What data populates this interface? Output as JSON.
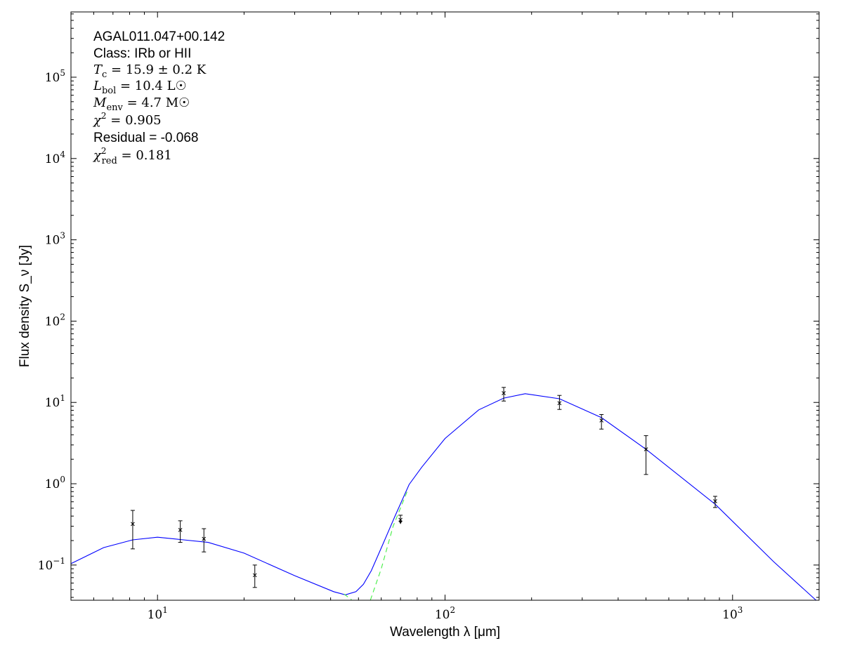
{
  "chart_data": {
    "type": "scatter",
    "xlabel": "Wavelength λ [μm]",
    "ylabel": "Flux density S_ν [Jy]",
    "xscale": "log",
    "yscale": "log",
    "xlim": [
      5,
      2000
    ],
    "ylim": [
      0.0369,
      635000
    ],
    "grid": false,
    "x_ticks": [
      {
        "value": 10,
        "base": "10",
        "exp": "1"
      },
      {
        "value": 100,
        "base": "10",
        "exp": "2"
      },
      {
        "value": 1000,
        "base": "10",
        "exp": "3"
      }
    ],
    "y_ticks": [
      {
        "value": 0.1,
        "base": "10",
        "exp": "−1"
      },
      {
        "value": 1,
        "base": "10",
        "exp": "0"
      },
      {
        "value": 10,
        "base": "10",
        "exp": "1"
      },
      {
        "value": 100,
        "base": "10",
        "exp": "2"
      },
      {
        "value": 1000,
        "base": "10",
        "exp": "3"
      },
      {
        "value": 10000,
        "base": "10",
        "exp": "4"
      },
      {
        "value": 100000,
        "base": "10",
        "exp": "5"
      }
    ],
    "annotations": [
      {
        "style": "sans",
        "text": "AGAL011.047+00.142"
      },
      {
        "style": "sans",
        "text": "Class: IRb or HII"
      },
      {
        "style": "math",
        "sym": "T",
        "sub": "c",
        "sup": "",
        "rest": " = 15.9 ± 0.2 K"
      },
      {
        "style": "math",
        "sym": "L",
        "sub": "bol",
        "sup": "",
        "rest": " = 10.4 L☉"
      },
      {
        "style": "math",
        "sym": "M",
        "sub": "env",
        "sup": "",
        "rest": " = 4.7 M☉"
      },
      {
        "style": "math",
        "sym": "χ",
        "sub": "",
        "sup": "2",
        "rest": " = 0.905"
      },
      {
        "style": "sans",
        "text": "Residual = -0.068"
      },
      {
        "style": "math",
        "sym": "χ",
        "sub": "red",
        "sup": "2",
        "rest": " = 0.181"
      }
    ],
    "points": [
      {
        "x": 8.2,
        "y": 0.32,
        "ylo": 0.158,
        "yhi": 0.47
      },
      {
        "x": 12.0,
        "y": 0.27,
        "ylo": 0.19,
        "yhi": 0.35
      },
      {
        "x": 14.5,
        "y": 0.21,
        "ylo": 0.145,
        "yhi": 0.28
      },
      {
        "x": 21.8,
        "y": 0.075,
        "ylo": 0.053,
        "yhi": 0.1
      },
      {
        "x": 70,
        "y": 0.36,
        "ylo": 0.33,
        "yhi": 0.41,
        "upper_limit": true
      },
      {
        "x": 160,
        "y": 13.0,
        "ylo": 10.4,
        "yhi": 15.3
      },
      {
        "x": 250,
        "y": 9.8,
        "ylo": 8.2,
        "yhi": 12.2
      },
      {
        "x": 350,
        "y": 6.0,
        "ylo": 4.7,
        "yhi": 7.1
      },
      {
        "x": 500,
        "y": 2.65,
        "ylo": 1.3,
        "yhi": 3.9
      },
      {
        "x": 870,
        "y": 0.61,
        "ylo": 0.51,
        "yhi": 0.7
      }
    ],
    "series": [
      {
        "style": "solid",
        "color": "#0000ff",
        "x": [
          5,
          6.5,
          8.2,
          10,
          15,
          20,
          30,
          41,
          45,
          49,
          52,
          55.4,
          61,
          67,
          75,
          83,
          100,
          131,
          160,
          190,
          250,
          350,
          500,
          870,
          1390,
          1950
        ],
        "y": [
          0.104,
          0.164,
          0.204,
          0.22,
          0.19,
          0.14,
          0.074,
          0.047,
          0.043,
          0.047,
          0.058,
          0.085,
          0.185,
          0.4,
          0.98,
          1.6,
          3.6,
          8.1,
          11.3,
          12.8,
          11.1,
          6.5,
          2.65,
          0.56,
          0.11,
          0.037
        ]
      },
      {
        "style": "dashed",
        "color": "#44ee44",
        "x": [
          44.5,
          47.3
        ],
        "y": [
          0.044,
          0.0375
        ]
      },
      {
        "style": "dashed",
        "color": "#44ee44",
        "x": [
          55,
          60,
          66,
          73.8
        ],
        "y": [
          0.037,
          0.09,
          0.3,
          0.8
        ]
      }
    ]
  }
}
